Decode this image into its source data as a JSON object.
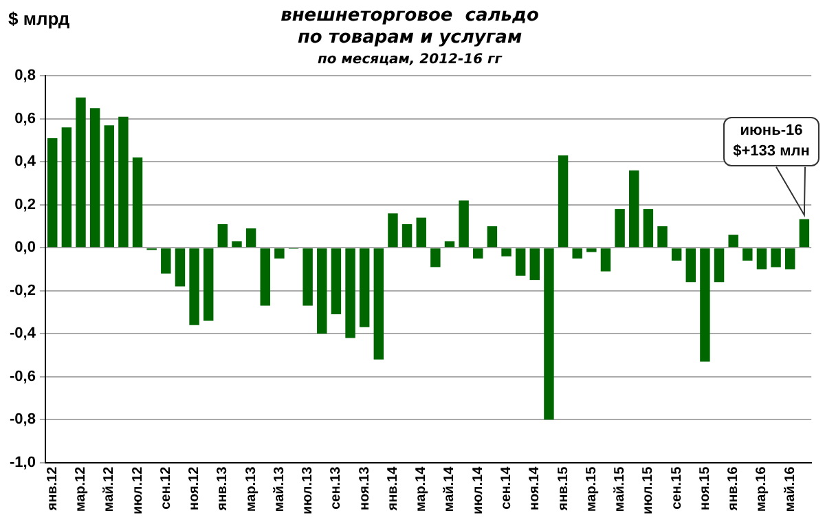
{
  "chart_data": {
    "type": "bar",
    "title": [
      "внешнеторговое  сальдо",
      "по товарам и услугам"
    ],
    "subtitle": "по месяцам, 2012-16 гг",
    "ylabel": "$ млрд",
    "categories": [
      "янв.12",
      null,
      "мар.12",
      null,
      "май.12",
      null,
      "июл.12",
      null,
      "сен.12",
      null,
      "ноя.12",
      null,
      "янв.13",
      null,
      "мар.13",
      null,
      "май.13",
      null,
      "июл.13",
      null,
      "сен.13",
      null,
      "ноя.13",
      null,
      "янв.14",
      null,
      "мар.14",
      null,
      "май.14",
      null,
      "июл.14",
      null,
      "сен.14",
      null,
      "ноя.14",
      null,
      "янв.15",
      null,
      "мар.15",
      null,
      "май.15",
      null,
      "июл.15",
      null,
      "сен.15",
      null,
      "ноя.15",
      null,
      "янв.16",
      null,
      "мар.16",
      null,
      "май.16",
      null
    ],
    "values": [
      0.51,
      0.56,
      0.7,
      0.65,
      0.57,
      0.61,
      0.42,
      -0.01,
      -0.12,
      -0.18,
      -0.36,
      -0.34,
      0.11,
      0.03,
      0.09,
      -0.27,
      -0.05,
      -0.005,
      -0.27,
      -0.4,
      -0.31,
      -0.42,
      -0.37,
      -0.52,
      0.16,
      0.11,
      0.14,
      -0.09,
      0.03,
      0.22,
      -0.05,
      0.1,
      -0.04,
      -0.13,
      -0.15,
      -0.8,
      0.43,
      -0.05,
      -0.02,
      -0.11,
      0.18,
      0.36,
      0.18,
      0.1,
      -0.06,
      -0.16,
      -0.53,
      -0.16,
      0.06,
      -0.06,
      -0.1,
      -0.09,
      -0.1,
      0.133
    ],
    "color": "#006600",
    "ylim": [
      -1.0,
      0.8
    ],
    "yticks": [
      {
        "value": -1.0,
        "label": "-1,0"
      },
      {
        "value": -0.8,
        "label": "-0,8"
      },
      {
        "value": -0.6,
        "label": "-0,6"
      },
      {
        "value": -0.4,
        "label": "-0,4"
      },
      {
        "value": -0.2,
        "label": "-0,2"
      },
      {
        "value": 0,
        "label": "0,0"
      },
      {
        "value": 0.2,
        "label": "0,2"
      },
      {
        "value": 0.4,
        "label": "0,4"
      },
      {
        "value": 0.6,
        "label": "0,6"
      },
      {
        "value": 0.8,
        "label": "0,8"
      }
    ],
    "grid": "y",
    "annotations": [
      "июнь-16\n$+133 млн"
    ]
  }
}
